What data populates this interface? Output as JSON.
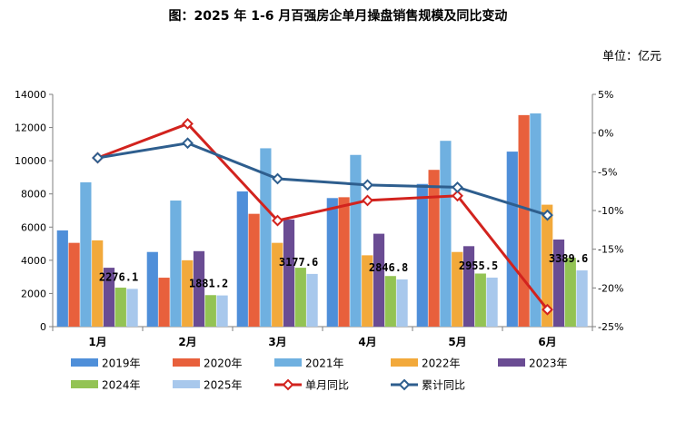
{
  "chart_data": {
    "type": "bar",
    "title": "图：2025 年 1-6 月百强房企单月操盘销售规模及同比变动",
    "unit_label": "单位：亿元",
    "categories": [
      "1月",
      "2月",
      "3月",
      "4月",
      "5月",
      "6月"
    ],
    "ylim": [
      0,
      14000
    ],
    "y_ticks": [
      0,
      2000,
      4000,
      6000,
      8000,
      10000,
      12000,
      14000
    ],
    "y2lim": [
      -25,
      5
    ],
    "y2_ticks": [
      "5%",
      "0%",
      "-5%",
      "-10%",
      "-15%",
      "-20%",
      "-25%"
    ],
    "y2_values": [
      5,
      0,
      -5,
      -10,
      -15,
      -20,
      -25
    ],
    "series": [
      {
        "name": "2019年",
        "color": "#4f8fd9",
        "values": [
          5800,
          4500,
          8150,
          7750,
          8600,
          10550
        ]
      },
      {
        "name": "2020年",
        "color": "#e8603c",
        "values": [
          5050,
          2950,
          6800,
          7800,
          9450,
          12750
        ]
      },
      {
        "name": "2021年",
        "color": "#6fb0e0",
        "values": [
          8700,
          7600,
          10750,
          10350,
          11200,
          12850
        ]
      },
      {
        "name": "2022年",
        "color": "#f2a93b",
        "values": [
          5200,
          4000,
          5050,
          4300,
          4500,
          7350
        ]
      },
      {
        "name": "2023年",
        "color": "#6a4c93",
        "values": [
          3550,
          4550,
          6450,
          5600,
          4850,
          5250
        ]
      },
      {
        "name": "2024年",
        "color": "#93c354",
        "values": [
          2350,
          1900,
          3550,
          3050,
          3200,
          4150
        ]
      },
      {
        "name": "2025年",
        "color": "#a8c8ec",
        "values": [
          2276.1,
          1881.2,
          3177.6,
          2846.8,
          2955.5,
          3389.6
        ]
      }
    ],
    "line_series": [
      {
        "name": "单月同比",
        "color": "#d2231e",
        "values": [
          -3.2,
          1.2,
          -11.3,
          -8.7,
          -8.1,
          -22.8
        ]
      },
      {
        "name": "累计同比",
        "color": "#2e5e8e",
        "values": [
          -3.2,
          -1.3,
          -5.9,
          -6.7,
          -7.0,
          -10.6
        ]
      }
    ],
    "data_labels": [
      "2276.1",
      "1881.2",
      "3177.6",
      "2846.8",
      "2955.5",
      "3389.6"
    ],
    "legend_placement": "bottom",
    "grid": false
  }
}
